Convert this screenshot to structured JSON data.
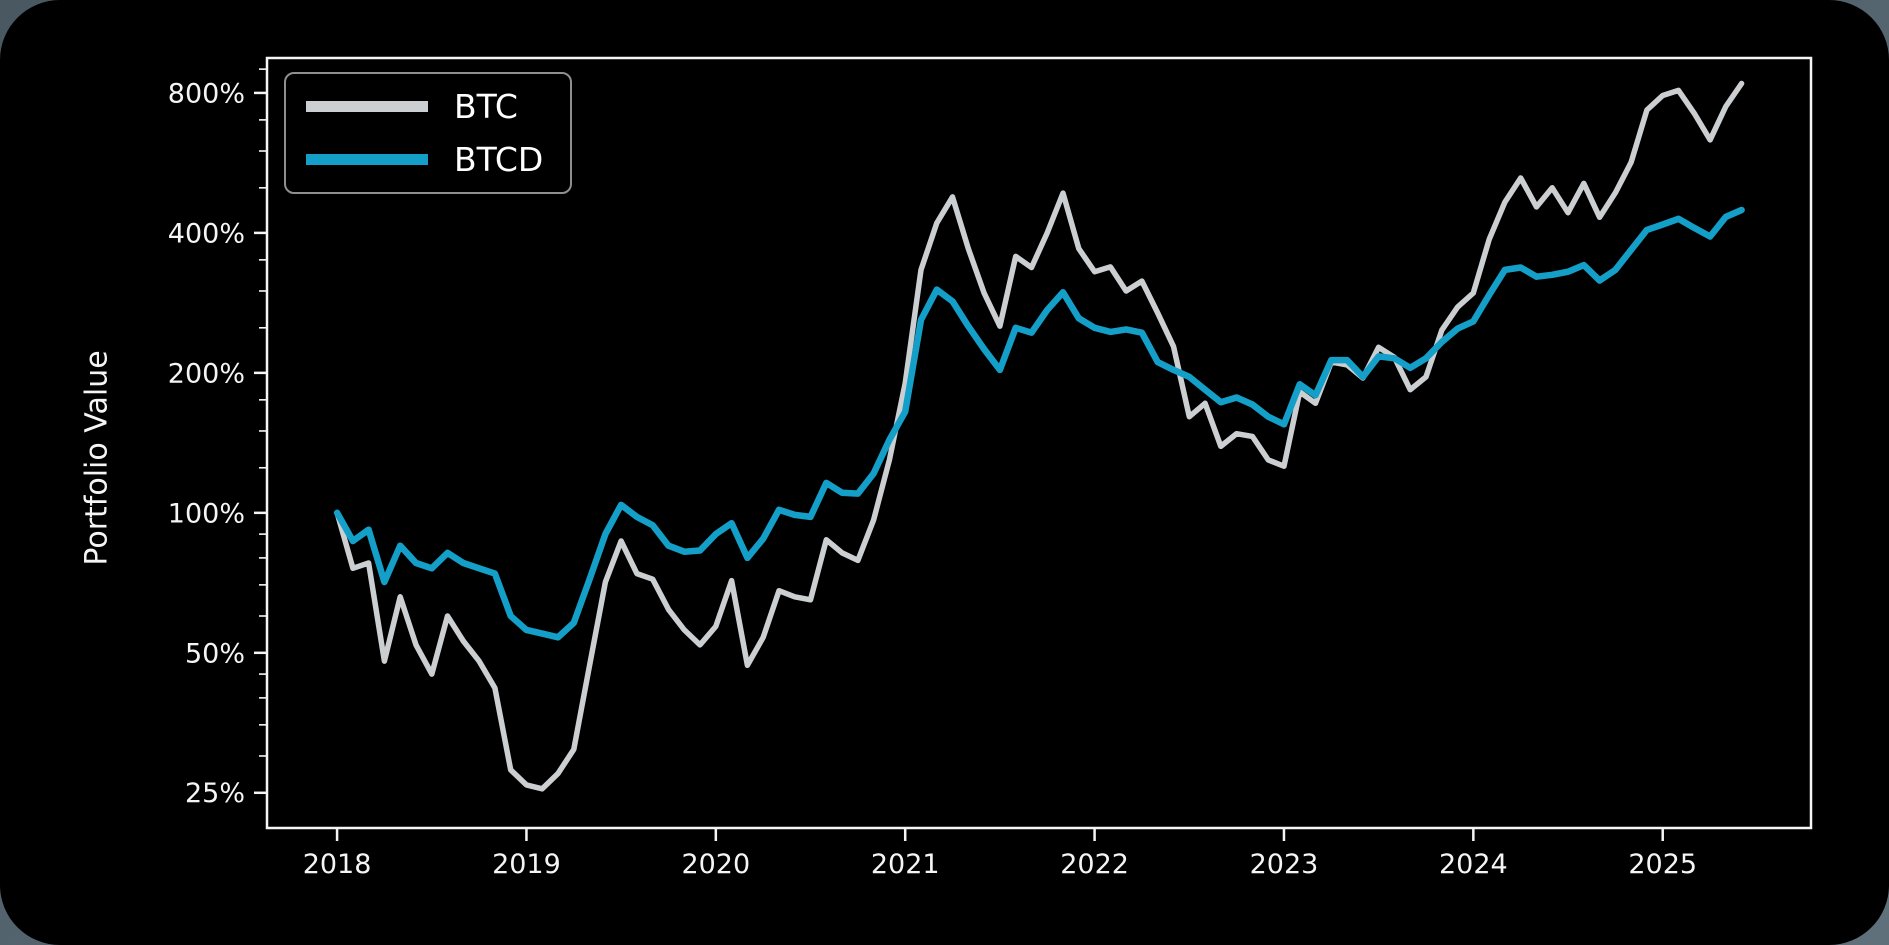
{
  "chart_data": {
    "type": "line",
    "title": "",
    "xlabel": "",
    "ylabel": "Portfolio Value",
    "y_scale": "log2",
    "grid": false,
    "legend_position": "upper-left",
    "x_start_year": 2018.0,
    "x_step_years": 0.0833333,
    "x_range": [
      2017.63,
      2025.783
    ],
    "y_range": [
      21.0,
      951.0
    ],
    "x_tick_values": [
      2018,
      2019,
      2020,
      2021,
      2022,
      2023,
      2024,
      2025
    ],
    "x_tick_labels": [
      "2018",
      "2019",
      "2020",
      "2021",
      "2022",
      "2023",
      "2024",
      "2025"
    ],
    "y_tick_values": [
      25,
      50,
      100,
      200,
      400,
      800
    ],
    "y_tick_labels": [
      "25%",
      "50%",
      "100%",
      "200%",
      "400%",
      "800%"
    ],
    "y_minor_tick_values": [
      30,
      35,
      40,
      45,
      60,
      70,
      80,
      90,
      125,
      150,
      175,
      250,
      300,
      350,
      500,
      600,
      700,
      900
    ],
    "axis_color": "#f5f5f5",
    "series": [
      {
        "name": "BTC",
        "color": "#cccfd2",
        "line_width": 5.5,
        "values": [
          100,
          76,
          78,
          48,
          66,
          52,
          45,
          60,
          53,
          48,
          42,
          28,
          26,
          25.5,
          27.5,
          31,
          47,
          71,
          87,
          74,
          72,
          62,
          56,
          52,
          57,
          71.5,
          47,
          54,
          68,
          66,
          65,
          87.5,
          82,
          79,
          96.5,
          130,
          190,
          333,
          420,
          478,
          370,
          297,
          252,
          356,
          337,
          400,
          487,
          370,
          330,
          338,
          300,
          315,
          269,
          228,
          161,
          172,
          139,
          148,
          146,
          130,
          126,
          182,
          172,
          211,
          208,
          195,
          227,
          216,
          184,
          196,
          247,
          277,
          297,
          387,
          466,
          525,
          455,
          500,
          442,
          511,
          432,
          488,
          568,
          735,
          790,
          810,
          723,
          634,
          748,
          838
        ]
      },
      {
        "name": "BTCD",
        "color": "#149fc9",
        "line_width": 6.5,
        "values": [
          100,
          87,
          92,
          71,
          85,
          78,
          76,
          82,
          78,
          76,
          74,
          60,
          56,
          55,
          54,
          58,
          72,
          90,
          104,
          98,
          94,
          85,
          82.5,
          83,
          90,
          95,
          80,
          88,
          101.5,
          99,
          98,
          116,
          110.5,
          110,
          121.5,
          143.5,
          165,
          260,
          302,
          285,
          252,
          225,
          203,
          250,
          244,
          273,
          298,
          262,
          250,
          245,
          248,
          244,
          211,
          203,
          196,
          184,
          173,
          177,
          171,
          161,
          155,
          189,
          179,
          213,
          213,
          196,
          217,
          215,
          205,
          215,
          233,
          249,
          258,
          294,
          333,
          337,
          322,
          325,
          330,
          341,
          316,
          333,
          368,
          406,
          417,
          429,
          410,
          393,
          433,
          448
        ]
      }
    ]
  }
}
